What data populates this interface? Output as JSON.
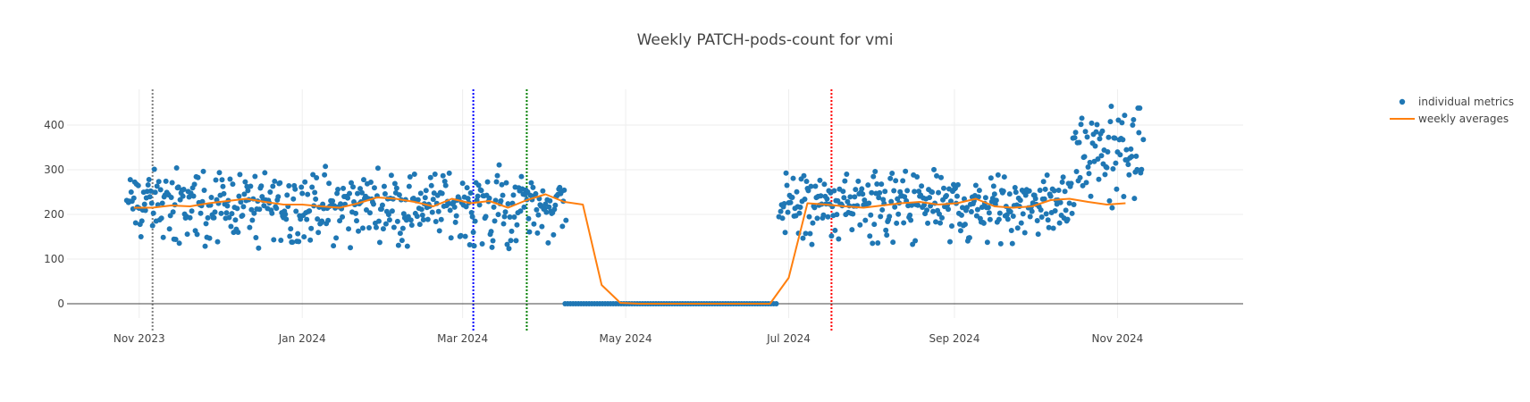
{
  "chart_data": {
    "type": "scatter",
    "title": "Weekly PATCH-pods-count for vmi",
    "xlabel": "",
    "ylabel": "",
    "x_range": [
      "2023-10-05",
      "2024-12-18"
    ],
    "ylim": [
      -32,
      480
    ],
    "x_ticks": [
      {
        "date": "2023-11-01",
        "label": "Nov 2023"
      },
      {
        "date": "2024-01-01",
        "label": "Jan 2024"
      },
      {
        "date": "2024-03-01",
        "label": "Mar 2024"
      },
      {
        "date": "2024-05-01",
        "label": "May 2024"
      },
      {
        "date": "2024-07-01",
        "label": "Jul 2024"
      },
      {
        "date": "2024-09-01",
        "label": "Sep 2024"
      },
      {
        "date": "2024-11-01",
        "label": "Nov 2024"
      }
    ],
    "y_ticks": [
      0,
      100,
      200,
      300,
      400
    ],
    "grid": true,
    "legend_position": "top-right",
    "vertical_markers": [
      {
        "date": "2023-11-06",
        "color": "#808080"
      },
      {
        "date": "2024-03-05",
        "color": "#0000ff"
      },
      {
        "date": "2024-03-25",
        "color": "#008000"
      },
      {
        "date": "2024-07-17",
        "color": "#ff0000"
      }
    ],
    "series": [
      {
        "name": "individual metrics",
        "mode": "markers",
        "color": "#1f77b4",
        "segments": [
          {
            "start": "2023-10-28",
            "end": "2024-04-08",
            "center": 225,
            "spread": 60
          },
          {
            "start": "2024-04-09",
            "end": "2024-06-27",
            "center": 0,
            "spread": 0
          },
          {
            "start": "2024-06-28",
            "end": "2024-10-15",
            "center": 225,
            "spread": 55
          },
          {
            "start": "2024-10-16",
            "end": "2024-11-10",
            "center": 330,
            "spread": 70
          }
        ]
      },
      {
        "name": "weekly averages",
        "mode": "lines",
        "color": "#ff7f0e",
        "x": [
          "2023-10-30",
          "2023-11-06",
          "2023-11-13",
          "2023-11-20",
          "2023-11-27",
          "2023-12-04",
          "2023-12-11",
          "2023-12-18",
          "2023-12-25",
          "2024-01-01",
          "2024-01-08",
          "2024-01-15",
          "2024-01-22",
          "2024-01-29",
          "2024-02-05",
          "2024-02-12",
          "2024-02-19",
          "2024-02-26",
          "2024-03-04",
          "2024-03-11",
          "2024-03-18",
          "2024-03-25",
          "2024-04-01",
          "2024-04-08",
          "2024-04-15",
          "2024-04-22",
          "2024-04-29",
          "2024-05-06",
          "2024-05-13",
          "2024-05-20",
          "2024-05-27",
          "2024-06-03",
          "2024-06-10",
          "2024-06-17",
          "2024-06-24",
          "2024-07-01",
          "2024-07-08",
          "2024-07-15",
          "2024-07-22",
          "2024-07-29",
          "2024-08-05",
          "2024-08-12",
          "2024-08-19",
          "2024-08-26",
          "2024-09-02",
          "2024-09-09",
          "2024-09-16",
          "2024-09-23",
          "2024-09-30",
          "2024-10-07",
          "2024-10-14",
          "2024-10-21",
          "2024-10-28",
          "2024-11-04"
        ],
        "y": [
          215,
          215,
          220,
          218,
          225,
          230,
          235,
          228,
          222,
          222,
          218,
          215,
          225,
          238,
          235,
          228,
          218,
          235,
          225,
          230,
          215,
          232,
          245,
          228,
          222,
          42,
          2,
          0,
          0,
          0,
          0,
          0,
          0,
          0,
          0,
          58,
          225,
          222,
          218,
          215,
          220,
          225,
          228,
          222,
          225,
          235,
          218,
          215,
          218,
          232,
          235,
          228,
          222,
          225
        ]
      }
    ]
  }
}
